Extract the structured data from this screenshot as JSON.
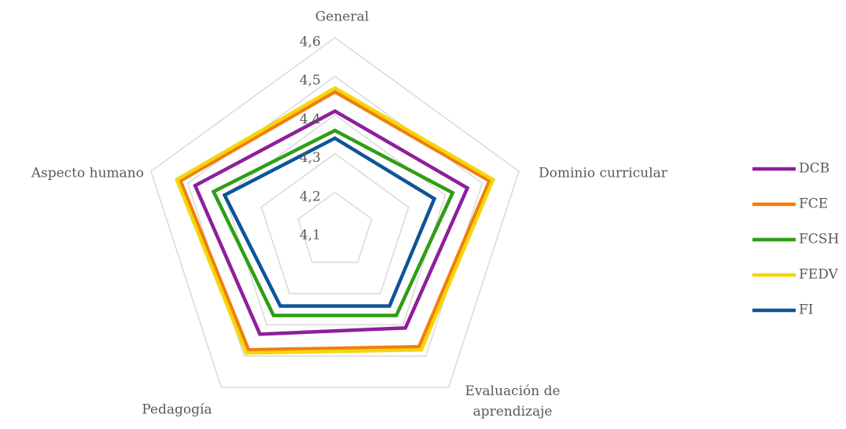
{
  "chart_data": {
    "type": "radar",
    "categories": [
      "General",
      "Dominio curricular",
      "Evaluación de aprendizaje",
      "Pedagogía",
      "Aspecto humano"
    ],
    "ylim": [
      4.1,
      4.6
    ],
    "yticks": [
      {
        "value": 4.1,
        "label": "4,1"
      },
      {
        "value": 4.2,
        "label": "4,2"
      },
      {
        "value": 4.3,
        "label": "4,3"
      },
      {
        "value": 4.4,
        "label": "4,4"
      },
      {
        "value": 4.5,
        "label": "4,5"
      },
      {
        "value": 4.6,
        "label": "4,6"
      }
    ],
    "grid": true,
    "legend": "right",
    "series": [
      {
        "name": "DCB",
        "color": "#8e1f9c",
        "values": [
          4.41,
          4.46,
          4.41,
          4.43,
          4.48
        ]
      },
      {
        "name": "FCE",
        "color": "#f07f0e",
        "values": [
          4.46,
          4.52,
          4.47,
          4.48,
          4.52
        ]
      },
      {
        "name": "FCSH",
        "color": "#2f9e14",
        "values": [
          4.36,
          4.42,
          4.37,
          4.37,
          4.43
        ]
      },
      {
        "name": "FEDV",
        "color": "#f5d60c",
        "values": [
          4.47,
          4.53,
          4.48,
          4.49,
          4.53
        ]
      },
      {
        "name": "FI",
        "color": "#0f5499",
        "values": [
          4.34,
          4.37,
          4.34,
          4.34,
          4.4
        ]
      }
    ]
  }
}
